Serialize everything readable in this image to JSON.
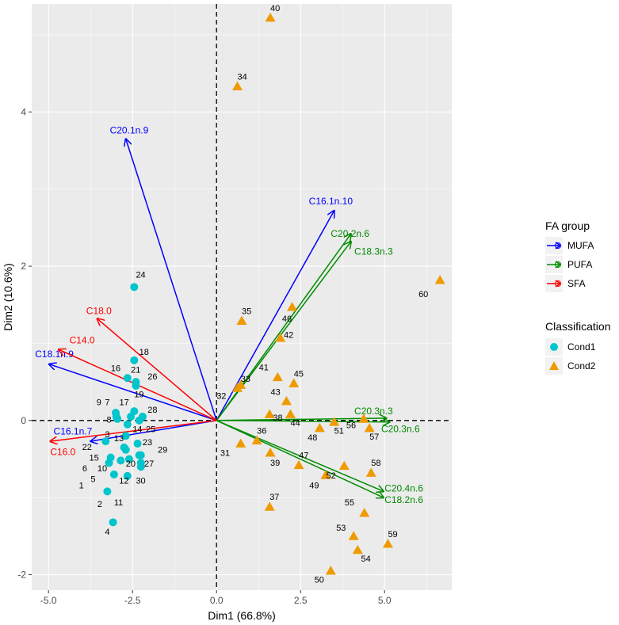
{
  "chart_data": {
    "type": "scatter",
    "title": "",
    "xlabel": "Dim1 (66.8%)",
    "ylabel": "Dim2 (10.6%)",
    "xlim": [
      -5.5,
      7.0
    ],
    "ylim": [
      -2.2,
      5.4
    ],
    "xticks": [
      -5.0,
      -2.5,
      0.0,
      2.5,
      5.0
    ],
    "yticks": [
      -2,
      0,
      2,
      4
    ],
    "xtick_labels": [
      "-5.0",
      "-2.5",
      "0.0",
      "2.5",
      "5.0"
    ],
    "ytick_labels": [
      "-2",
      "0",
      "2",
      "4"
    ],
    "grid": true,
    "legend_group_title": "FA group",
    "legend_class_title": "Classification",
    "groups": [
      {
        "name": "MUFA",
        "color": "#0000ff"
      },
      {
        "name": "PUFA",
        "color": "#008b00"
      },
      {
        "name": "SFA",
        "color": "#ff0000"
      }
    ],
    "classes": [
      {
        "name": "Cond1",
        "color": "#00c5cd",
        "shape": "circle"
      },
      {
        "name": "Cond2",
        "color": "#ee9a00",
        "shape": "triangle"
      }
    ],
    "variables": [
      {
        "name": "C20.1n.9",
        "group": "MUFA",
        "x": -2.7,
        "y": 3.65,
        "lx": -2.6,
        "ly": 3.72,
        "anchor": "middle"
      },
      {
        "name": "C16.1n.10",
        "group": "MUFA",
        "x": 3.5,
        "y": 2.72,
        "lx": 3.4,
        "ly": 2.8,
        "anchor": "middle"
      },
      {
        "name": "C18.1n.9",
        "group": "MUFA",
        "x": -4.98,
        "y": 0.73,
        "lx": -5.4,
        "ly": 0.82,
        "anchor": "start"
      },
      {
        "name": "C16.1n.7",
        "group": "MUFA",
        "x": -3.75,
        "y": -0.27,
        "lx": -4.85,
        "ly": -0.18,
        "anchor": "start"
      },
      {
        "name": "C20.2n.6",
        "group": "PUFA",
        "x": 4.0,
        "y": 2.42,
        "lx": 3.4,
        "ly": 2.38,
        "anchor": "start"
      },
      {
        "name": "C18.3n.3",
        "group": "PUFA",
        "x": 4.0,
        "y": 2.32,
        "lx": 4.1,
        "ly": 2.15,
        "anchor": "start"
      },
      {
        "name": "C20.3n.3",
        "group": "PUFA",
        "x": 5.05,
        "y": 0.03,
        "lx": 4.1,
        "ly": 0.08,
        "anchor": "start"
      },
      {
        "name": "C20.3n.6",
        "group": "PUFA",
        "x": 5.15,
        "y": -0.02,
        "lx": 4.9,
        "ly": -0.15,
        "anchor": "start"
      },
      {
        "name": "C20.4n.6",
        "group": "PUFA",
        "x": 4.97,
        "y": -0.92,
        "lx": 5.0,
        "ly": -0.92,
        "anchor": "start"
      },
      {
        "name": "C18.2n.6",
        "group": "PUFA",
        "x": 4.97,
        "y": -1.0,
        "lx": 5.0,
        "ly": -1.07,
        "anchor": "start"
      },
      {
        "name": "C18.0",
        "group": "SFA",
        "x": -3.55,
        "y": 1.32,
        "lx": -3.5,
        "ly": 1.38,
        "anchor": "middle"
      },
      {
        "name": "C14.0",
        "group": "SFA",
        "x": -4.7,
        "y": 0.92,
        "lx": -4.0,
        "ly": 1.0,
        "anchor": "middle"
      },
      {
        "name": "C16.0",
        "group": "SFA",
        "x": -4.95,
        "y": -0.27,
        "lx": -4.95,
        "ly": -0.45,
        "anchor": "start"
      }
    ],
    "points": [
      {
        "id": "1",
        "class": "Cond1",
        "x": -3.2,
        "y": -0.55,
        "lx": -3.95,
        "ly": -0.88,
        "anchor": "end"
      },
      {
        "id": "2",
        "class": "Cond1",
        "x": -3.25,
        "y": -0.92,
        "lx": -3.4,
        "ly": -1.12,
        "anchor": "end"
      },
      {
        "id": "3",
        "class": "Cond1",
        "x": -3.3,
        "y": -0.27,
        "lx": -3.25,
        "ly": -0.22,
        "anchor": "middle"
      },
      {
        "id": "4",
        "class": "Cond1",
        "x": -3.08,
        "y": -1.32,
        "lx": -3.25,
        "ly": -1.48,
        "anchor": "middle"
      },
      {
        "id": "5",
        "class": "Cond1",
        "x": -3.05,
        "y": -0.7,
        "lx": -3.6,
        "ly": -0.8,
        "anchor": "end"
      },
      {
        "id": "6",
        "class": "Cond1",
        "x": -3.15,
        "y": -0.48,
        "lx": -3.85,
        "ly": -0.66,
        "anchor": "end"
      },
      {
        "id": "7",
        "class": "Cond1",
        "x": -3.0,
        "y": 0.1,
        "lx": -3.25,
        "ly": 0.2,
        "anchor": "middle"
      },
      {
        "id": "8",
        "class": "Cond1",
        "x": -2.95,
        "y": 0.02,
        "lx": -3.2,
        "ly": -0.03,
        "anchor": "middle"
      },
      {
        "id": "9",
        "class": "Cond1",
        "x": -2.98,
        "y": 0.05,
        "lx": -3.5,
        "ly": 0.2,
        "anchor": "middle"
      },
      {
        "id": "10",
        "class": "Cond1",
        "x": -2.85,
        "y": -0.52,
        "lx": -3.4,
        "ly": -0.66,
        "anchor": "middle"
      },
      {
        "id": "11",
        "class": "Cond1",
        "x": -2.65,
        "y": -0.72,
        "lx": -3.05,
        "ly": -1.1,
        "anchor": "start"
      },
      {
        "id": "12",
        "class": "Cond1",
        "x": -2.6,
        "y": -0.5,
        "lx": -2.9,
        "ly": -0.82,
        "anchor": "start"
      },
      {
        "id": "13",
        "class": "Cond1",
        "x": -2.7,
        "y": -0.2,
        "lx": -3.05,
        "ly": -0.27,
        "anchor": "start"
      },
      {
        "id": "14",
        "class": "Cond1",
        "x": -2.65,
        "y": -0.05,
        "lx": -2.5,
        "ly": -0.15,
        "anchor": "start"
      },
      {
        "id": "15",
        "class": "Cond1",
        "x": -2.7,
        "y": -0.38,
        "lx": -3.5,
        "ly": -0.52,
        "anchor": "end"
      },
      {
        "id": "16",
        "class": "Cond1",
        "x": -2.65,
        "y": 0.55,
        "lx": -3.0,
        "ly": 0.64,
        "anchor": "middle"
      },
      {
        "id": "17",
        "class": "Cond1",
        "x": -2.55,
        "y": 0.05,
        "lx": -2.75,
        "ly": 0.2,
        "anchor": "middle"
      },
      {
        "id": "18",
        "class": "Cond1",
        "x": -2.45,
        "y": 0.78,
        "lx": -2.3,
        "ly": 0.85,
        "anchor": "start"
      },
      {
        "id": "19",
        "class": "Cond1",
        "x": -2.45,
        "y": 0.12,
        "lx": -2.45,
        "ly": 0.3,
        "anchor": "start"
      },
      {
        "id": "20",
        "class": "Cond1",
        "x": -2.3,
        "y": -0.45,
        "lx": -2.7,
        "ly": -0.6,
        "anchor": "start"
      },
      {
        "id": "21",
        "class": "Cond1",
        "x": -2.4,
        "y": 0.5,
        "lx": -2.55,
        "ly": 0.62,
        "anchor": "start"
      },
      {
        "id": "22",
        "class": "Cond1",
        "x": -2.75,
        "y": -0.35,
        "lx": -4.0,
        "ly": -0.38,
        "anchor": "start"
      },
      {
        "id": "23",
        "class": "Cond1",
        "x": -2.35,
        "y": -0.3,
        "lx": -2.2,
        "ly": -0.32,
        "anchor": "start"
      },
      {
        "id": "24",
        "class": "Cond1",
        "x": -2.45,
        "y": 1.73,
        "lx": -2.4,
        "ly": 1.85,
        "anchor": "start"
      },
      {
        "id": "25",
        "class": "Cond1",
        "x": -2.3,
        "y": 0.0,
        "lx": -2.1,
        "ly": -0.15,
        "anchor": "start"
      },
      {
        "id": "26",
        "class": "Cond1",
        "x": -2.4,
        "y": 0.45,
        "lx": -2.05,
        "ly": 0.53,
        "anchor": "start"
      },
      {
        "id": "27",
        "class": "Cond1",
        "x": -2.25,
        "y": -0.55,
        "lx": -2.15,
        "ly": -0.6,
        "anchor": "start"
      },
      {
        "id": "28",
        "class": "Cond1",
        "x": -2.2,
        "y": 0.05,
        "lx": -2.05,
        "ly": 0.1,
        "anchor": "start"
      },
      {
        "id": "29",
        "class": "Cond1",
        "x": -2.25,
        "y": -0.45,
        "lx": -1.75,
        "ly": -0.42,
        "anchor": "start"
      },
      {
        "id": "30",
        "class": "Cond1",
        "x": -2.25,
        "y": -0.6,
        "lx": -2.4,
        "ly": -0.82,
        "anchor": "start"
      },
      {
        "id": "31",
        "class": "Cond2",
        "x": 0.72,
        "y": -0.3,
        "lx": 0.4,
        "ly": -0.46,
        "anchor": "end"
      },
      {
        "id": "32",
        "class": "Cond2",
        "x": 0.62,
        "y": 0.42,
        "lx": 0.0,
        "ly": 0.28,
        "anchor": "start"
      },
      {
        "id": "33",
        "class": "Cond2",
        "x": 0.72,
        "y": 0.46,
        "lx": 0.72,
        "ly": 0.5,
        "anchor": "start"
      },
      {
        "id": "34",
        "class": "Cond2",
        "x": 0.62,
        "y": 4.33,
        "lx": 0.62,
        "ly": 4.42,
        "anchor": "start"
      },
      {
        "id": "35",
        "class": "Cond2",
        "x": 0.75,
        "y": 1.29,
        "lx": 0.75,
        "ly": 1.38,
        "anchor": "start"
      },
      {
        "id": "36",
        "class": "Cond2",
        "x": 1.2,
        "y": -0.26,
        "lx": 1.2,
        "ly": -0.17,
        "anchor": "start"
      },
      {
        "id": "37",
        "class": "Cond2",
        "x": 1.58,
        "y": -1.12,
        "lx": 1.58,
        "ly": -1.03,
        "anchor": "start"
      },
      {
        "id": "38",
        "class": "Cond2",
        "x": 1.58,
        "y": 0.08,
        "lx": 1.68,
        "ly": 0.0,
        "anchor": "start"
      },
      {
        "id": "39",
        "class": "Cond2",
        "x": 1.6,
        "y": -0.42,
        "lx": 1.6,
        "ly": -0.59,
        "anchor": "start"
      },
      {
        "id": "40",
        "class": "Cond2",
        "x": 1.6,
        "y": 5.22,
        "lx": 1.6,
        "ly": 5.31,
        "anchor": "start"
      },
      {
        "id": "41",
        "class": "Cond2",
        "x": 1.82,
        "y": 0.56,
        "lx": 1.55,
        "ly": 0.65,
        "anchor": "end"
      },
      {
        "id": "42",
        "class": "Cond2",
        "x": 1.9,
        "y": 1.07,
        "lx": 2.0,
        "ly": 1.07,
        "anchor": "start"
      },
      {
        "id": "43",
        "class": "Cond2",
        "x": 2.08,
        "y": 0.25,
        "lx": 1.9,
        "ly": 0.33,
        "anchor": "end"
      },
      {
        "id": "44",
        "class": "Cond2",
        "x": 2.2,
        "y": 0.08,
        "lx": 2.2,
        "ly": -0.07,
        "anchor": "start"
      },
      {
        "id": "45",
        "class": "Cond2",
        "x": 2.3,
        "y": 0.48,
        "lx": 2.3,
        "ly": 0.57,
        "anchor": "start"
      },
      {
        "id": "46",
        "class": "Cond2",
        "x": 2.25,
        "y": 1.47,
        "lx": 1.95,
        "ly": 1.28,
        "anchor": "start"
      },
      {
        "id": "47",
        "class": "Cond2",
        "x": 2.45,
        "y": -0.58,
        "lx": 2.45,
        "ly": -0.49,
        "anchor": "start"
      },
      {
        "id": "48",
        "class": "Cond2",
        "x": 3.07,
        "y": -0.1,
        "lx": 3.0,
        "ly": -0.26,
        "anchor": "end"
      },
      {
        "id": "49",
        "class": "Cond2",
        "x": 3.25,
        "y": -0.71,
        "lx": 3.05,
        "ly": -0.88,
        "anchor": "end"
      },
      {
        "id": "50",
        "class": "Cond2",
        "x": 3.4,
        "y": -1.95,
        "lx": 3.2,
        "ly": -2.1,
        "anchor": "end"
      },
      {
        "id": "51",
        "class": "Cond2",
        "x": 3.5,
        "y": -0.02,
        "lx": 3.5,
        "ly": -0.17,
        "anchor": "start"
      },
      {
        "id": "52",
        "class": "Cond2",
        "x": 3.8,
        "y": -0.59,
        "lx": 3.55,
        "ly": -0.75,
        "anchor": "end"
      },
      {
        "id": "53",
        "class": "Cond2",
        "x": 4.08,
        "y": -1.5,
        "lx": 3.85,
        "ly": -1.43,
        "anchor": "end"
      },
      {
        "id": "54",
        "class": "Cond2",
        "x": 4.2,
        "y": -1.68,
        "lx": 4.3,
        "ly": -1.83,
        "anchor": "start"
      },
      {
        "id": "55",
        "class": "Cond2",
        "x": 4.4,
        "y": -1.2,
        "lx": 4.1,
        "ly": -1.1,
        "anchor": "end"
      },
      {
        "id": "56",
        "class": "Cond2",
        "x": 4.38,
        "y": 0.02,
        "lx": 4.15,
        "ly": -0.1,
        "anchor": "end"
      },
      {
        "id": "57",
        "class": "Cond2",
        "x": 4.55,
        "y": -0.1,
        "lx": 4.55,
        "ly": -0.25,
        "anchor": "start"
      },
      {
        "id": "58",
        "class": "Cond2",
        "x": 4.6,
        "y": -0.68,
        "lx": 4.6,
        "ly": -0.59,
        "anchor": "start"
      },
      {
        "id": "59",
        "class": "Cond2",
        "x": 5.1,
        "y": -1.6,
        "lx": 5.1,
        "ly": -1.51,
        "anchor": "start"
      },
      {
        "id": "60",
        "class": "Cond2",
        "x": 6.65,
        "y": 1.82,
        "lx": 6.3,
        "ly": 1.6,
        "anchor": "end"
      }
    ]
  }
}
